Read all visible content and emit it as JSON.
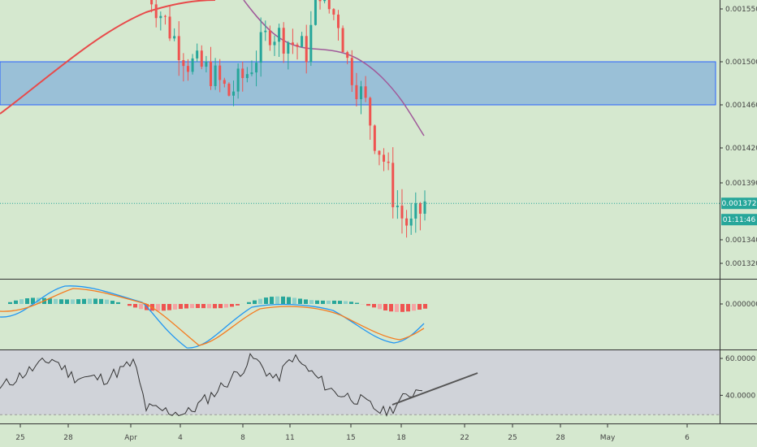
{
  "colors": {
    "background": "#d5e8cf",
    "up": "#26a69a",
    "down": "#ef5350",
    "ma_fast": "#e84a4a",
    "ma_slow": "#a05a9a",
    "zone_fill": "#8fb8d8",
    "zone_border": "#2962ff",
    "macd_line": "#2196f3",
    "signal_line": "#f57c20",
    "rsi_band": "#d0d3d9",
    "rsi_line": "#333333",
    "trendline": "#555555",
    "last_price_bg": "#26a69a",
    "timer_bg": "#26a69a"
  },
  "price_axis": {
    "ticks": [
      "0.001550",
      "0.001500",
      "0.001460",
      "0.001420",
      "0.001390",
      "0.001340",
      "0.001320"
    ],
    "tick_values": [
      0.00155,
      0.0015,
      0.00146,
      0.00142,
      0.00139,
      0.00134,
      0.00132
    ],
    "last_price": "0.001372",
    "countdown": "01:11:46"
  },
  "macd_axis": {
    "ticks": [
      "0.000000"
    ]
  },
  "rsi_axis": {
    "ticks": [
      "60.0000",
      "40.0000"
    ]
  },
  "time_axis": {
    "labels": [
      "25",
      "28",
      "Apr",
      "4",
      "8",
      "11",
      "15",
      "18",
      "22",
      "25",
      "28",
      "May",
      "6"
    ]
  },
  "chart_data": {
    "type": "candlestick",
    "price_range": [
      0.00131,
      0.00157
    ],
    "zone": [
      0.00146,
      0.0015
    ],
    "last_price": 0.001372,
    "rsi_range": [
      29,
      63
    ],
    "rsi_levels": [
      60,
      40
    ]
  }
}
